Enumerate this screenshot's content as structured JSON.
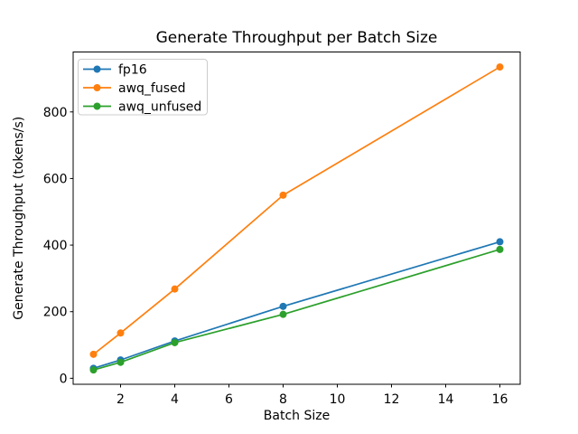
{
  "chart_data": {
    "type": "line",
    "title": "Generate Throughput per Batch Size",
    "xlabel": "Batch Size",
    "ylabel": "Generate Throughput (tokens/s)",
    "x": [
      1,
      2,
      4,
      8,
      16
    ],
    "series": [
      {
        "name": "fp16",
        "color": "#1f77b4",
        "values": [
          30,
          55,
          112,
          216,
          410
        ]
      },
      {
        "name": "awq_fused",
        "color": "#ff7f0e",
        "values": [
          72,
          136,
          268,
          550,
          935
        ]
      },
      {
        "name": "awq_unfused",
        "color": "#2ca02c",
        "values": [
          25,
          48,
          107,
          192,
          387
        ]
      }
    ],
    "xlim": [
      0.25,
      16.75
    ],
    "ylim": [
      -18,
      980
    ],
    "xticks": [
      2,
      4,
      6,
      8,
      10,
      12,
      14,
      16
    ],
    "yticks": [
      0,
      200,
      400,
      600,
      800
    ],
    "grid": false,
    "legend": {
      "position": "upper left",
      "border_color": "#cccccc",
      "background": "#ffffff"
    },
    "marker": "circle",
    "background": "#ffffff",
    "axis_color": "#000000",
    "text_color": "#000000"
  }
}
